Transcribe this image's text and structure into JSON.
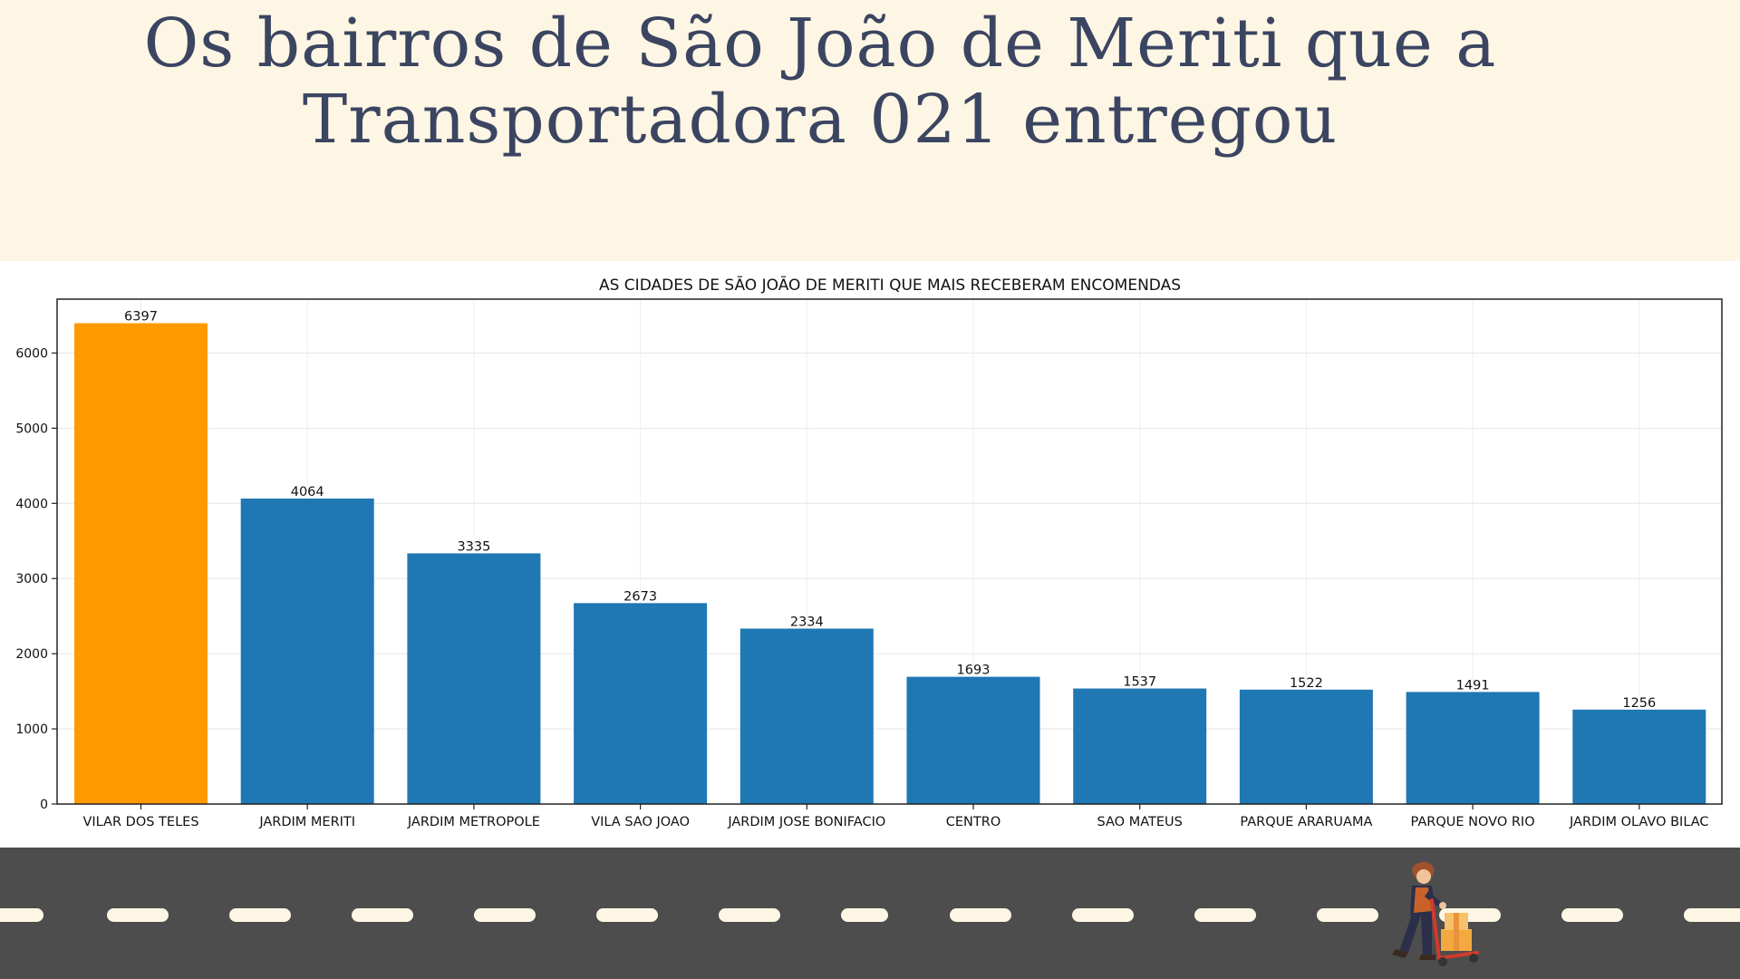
{
  "header": {
    "title_line1": "Os bairros de São João de Meriti que a",
    "title_line2": "Transportadora 021 entregou"
  },
  "colors": {
    "background": "#FEF6E4",
    "title": "#3B4561",
    "bar_default": "#1F77B4",
    "bar_highlight": "#FF9900",
    "road": "#4D4D4D",
    "lane_marking": "#FEF6E4"
  },
  "chart_data": {
    "type": "bar",
    "title": "AS CIDADES DE SÃO JOÃO DE MERITI QUE MAIS RECEBERAM ENCOMENDAS",
    "xlabel": "",
    "ylabel": "",
    "categories": [
      "VILAR DOS TELES",
      "JARDIM MERITI",
      "JARDIM METROPOLE",
      "VILA SAO JOAO",
      "JARDIM JOSE BONIFACIO",
      "CENTRO",
      "SAO MATEUS",
      "PARQUE ARARUAMA",
      "PARQUE NOVO RIO",
      "JARDIM OLAVO BILAC"
    ],
    "values": [
      6397,
      4064,
      3335,
      2673,
      2334,
      1693,
      1537,
      1522,
      1491,
      1256
    ],
    "highlight_index": 0,
    "ylim": [
      0,
      6717
    ],
    "yticks": [
      0,
      1000,
      2000,
      3000,
      4000,
      5000,
      6000
    ],
    "grid": true,
    "legend": "none",
    "data_labels": true
  },
  "illustration": {
    "icon": "delivery-person-with-hand-truck-icon"
  }
}
